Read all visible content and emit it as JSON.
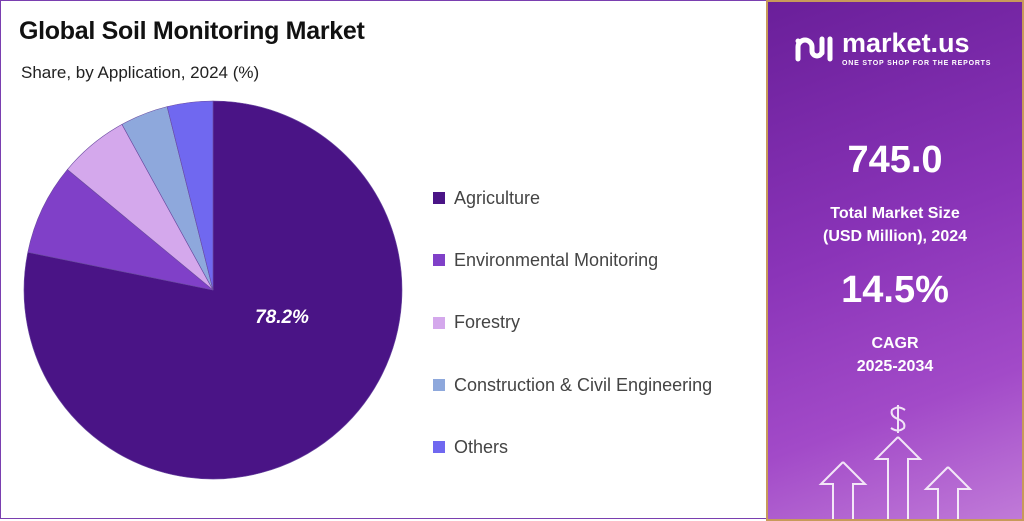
{
  "chart_data": {
    "type": "pie",
    "title": "Global Soil Monitoring Market",
    "subtitle": "Share, by Application, 2024 (%)",
    "categories": [
      "Agriculture",
      "Environmental Monitoring",
      "Forestry",
      "Construction & Civil Engineering",
      "Others"
    ],
    "values": [
      78.2,
      7.8,
      6.0,
      4.1,
      3.9
    ],
    "data_labels": [
      "78.2%",
      "",
      "",
      "",
      ""
    ],
    "colors": [
      "#4a1486",
      "#8040c8",
      "#d4a8ec",
      "#8ea8dc",
      "#7068f0"
    ],
    "legend_position": "right"
  },
  "brand": {
    "name": "market.us",
    "tagline": "ONE STOP SHOP FOR THE REPORTS"
  },
  "stats": {
    "market_size": "745.0",
    "market_size_label_1": "Total Market Size",
    "market_size_label_2": "(USD Million), 2024",
    "cagr": "14.5%",
    "cagr_label_1": "CAGR",
    "cagr_label_2": "2025-2034"
  }
}
